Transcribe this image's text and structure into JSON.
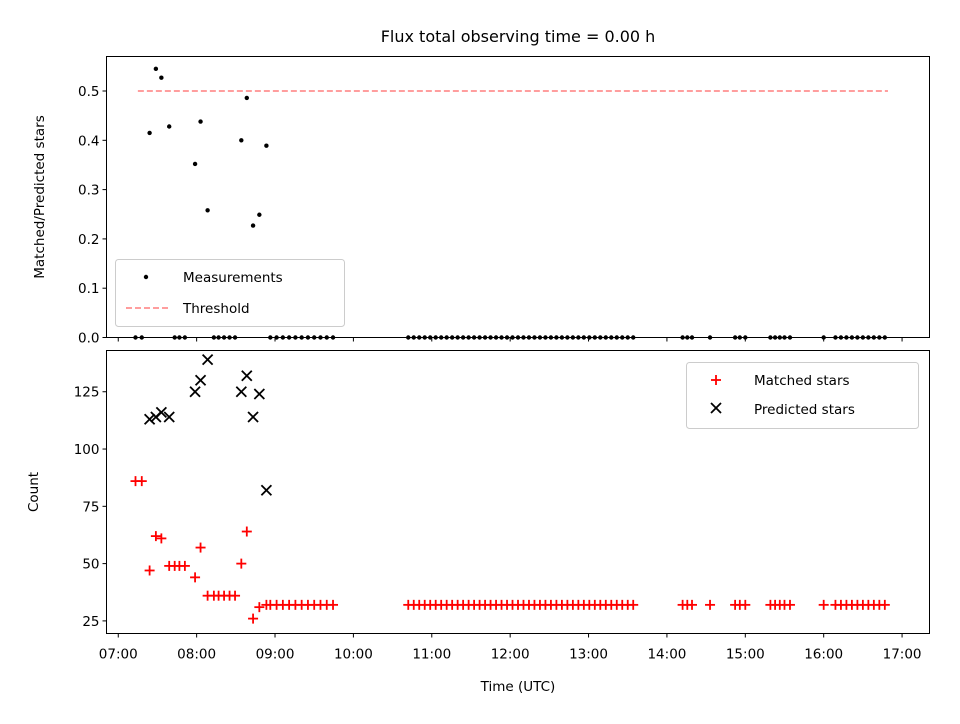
{
  "chart_data": {
    "title": "Flux total observing time = 0.00 h",
    "xlabel": "Time (UTC)",
    "x_unit": "hours UTC",
    "xlim": [
      6.85,
      17.35
    ],
    "x_tick_values": [
      7,
      8,
      9,
      10,
      11,
      12,
      13,
      14,
      15,
      16,
      17
    ],
    "x_tick_labels": [
      "07:00",
      "08:00",
      "09:00",
      "10:00",
      "11:00",
      "12:00",
      "13:00",
      "14:00",
      "15:00",
      "16:00",
      "17:00"
    ],
    "colors": {
      "measurement": "#000000",
      "threshold": "#ff7f7f",
      "matched": "#ff0000",
      "predicted": "#000000",
      "frame": "#000000"
    },
    "top": {
      "type": "scatter",
      "ylabel": "Matched/Predicted stars",
      "ylim": [
        0,
        0.57
      ],
      "y_tick_values": [
        0,
        0.1,
        0.2,
        0.3,
        0.4,
        0.5
      ],
      "y_tick_labels": [
        "0.0",
        "0.1",
        "0.2",
        "0.3",
        "0.4",
        "0.5"
      ],
      "threshold": {
        "value": 0.5,
        "x_range": [
          7.25,
          16.82
        ]
      },
      "measurements": [
        [
          7.22,
          0
        ],
        [
          7.3,
          0
        ],
        [
          7.4,
          0.415
        ],
        [
          7.48,
          0.545
        ],
        [
          7.55,
          0.527
        ],
        [
          7.65,
          0.428
        ],
        [
          7.72,
          0
        ],
        [
          7.78,
          0
        ],
        [
          7.85,
          0
        ],
        [
          7.98,
          0.352
        ],
        [
          8.05,
          0.438
        ],
        [
          8.14,
          0.258
        ],
        [
          8.22,
          0
        ],
        [
          8.28,
          0
        ],
        [
          8.35,
          0
        ],
        [
          8.42,
          0
        ],
        [
          8.49,
          0
        ],
        [
          8.57,
          0.4
        ],
        [
          8.64,
          0.486
        ],
        [
          8.72,
          0.227
        ],
        [
          8.8,
          0.249
        ],
        [
          8.89,
          0.389
        ],
        [
          8.94,
          0
        ],
        [
          9.02,
          0
        ],
        [
          9.1,
          0
        ],
        [
          9.18,
          0
        ],
        [
          9.26,
          0
        ],
        [
          9.34,
          0
        ],
        [
          9.42,
          0
        ],
        [
          9.5,
          0
        ],
        [
          9.58,
          0
        ],
        [
          9.66,
          0
        ],
        [
          9.74,
          0
        ],
        [
          10.7,
          0
        ],
        [
          10.77,
          0
        ],
        [
          10.84,
          0
        ],
        [
          10.91,
          0
        ],
        [
          10.98,
          0
        ],
        [
          11.05,
          0
        ],
        [
          11.12,
          0
        ],
        [
          11.19,
          0
        ],
        [
          11.26,
          0
        ],
        [
          11.33,
          0
        ],
        [
          11.4,
          0
        ],
        [
          11.47,
          0
        ],
        [
          11.54,
          0
        ],
        [
          11.61,
          0
        ],
        [
          11.68,
          0
        ],
        [
          11.75,
          0
        ],
        [
          11.82,
          0
        ],
        [
          11.89,
          0
        ],
        [
          11.96,
          0
        ],
        [
          12.03,
          0
        ],
        [
          12.1,
          0
        ],
        [
          12.17,
          0
        ],
        [
          12.24,
          0
        ],
        [
          12.31,
          0
        ],
        [
          12.38,
          0
        ],
        [
          12.45,
          0
        ],
        [
          12.52,
          0
        ],
        [
          12.59,
          0
        ],
        [
          12.66,
          0
        ],
        [
          12.73,
          0
        ],
        [
          12.8,
          0
        ],
        [
          12.87,
          0
        ],
        [
          12.94,
          0
        ],
        [
          13.01,
          0
        ],
        [
          13.08,
          0
        ],
        [
          13.15,
          0
        ],
        [
          13.22,
          0
        ],
        [
          13.29,
          0
        ],
        [
          13.36,
          0
        ],
        [
          13.43,
          0
        ],
        [
          13.5,
          0
        ],
        [
          13.57,
          0
        ],
        [
          14.2,
          0
        ],
        [
          14.26,
          0
        ],
        [
          14.32,
          0
        ],
        [
          14.55,
          0
        ],
        [
          14.87,
          0
        ],
        [
          14.93,
          0
        ],
        [
          15.0,
          0
        ],
        [
          15.32,
          0
        ],
        [
          15.38,
          0
        ],
        [
          15.44,
          0
        ],
        [
          15.5,
          0
        ],
        [
          15.57,
          0
        ],
        [
          16.0,
          0
        ],
        [
          16.15,
          0
        ],
        [
          16.22,
          0
        ],
        [
          16.29,
          0
        ],
        [
          16.36,
          0
        ],
        [
          16.43,
          0
        ],
        [
          16.5,
          0
        ],
        [
          16.57,
          0
        ],
        [
          16.64,
          0
        ],
        [
          16.71,
          0
        ],
        [
          16.78,
          0
        ]
      ],
      "legend": {
        "position": "lower-left",
        "entries": [
          "Measurements",
          "Threshold"
        ]
      }
    },
    "bottom": {
      "type": "scatter",
      "ylabel": "Count",
      "ylim": [
        19.5,
        143
      ],
      "y_tick_values": [
        25,
        50,
        75,
        100,
        125
      ],
      "y_tick_labels": [
        "25",
        "50",
        "75",
        "100",
        "125"
      ],
      "matched": [
        [
          7.22,
          86
        ],
        [
          7.3,
          86
        ],
        [
          7.4,
          47
        ],
        [
          7.48,
          62
        ],
        [
          7.55,
          61
        ],
        [
          7.65,
          49
        ],
        [
          7.72,
          49
        ],
        [
          7.78,
          49
        ],
        [
          7.85,
          49
        ],
        [
          7.98,
          44
        ],
        [
          8.05,
          57
        ],
        [
          8.14,
          36
        ],
        [
          8.22,
          36
        ],
        [
          8.28,
          36
        ],
        [
          8.35,
          36
        ],
        [
          8.42,
          36
        ],
        [
          8.49,
          36
        ],
        [
          8.57,
          50
        ],
        [
          8.64,
          64
        ],
        [
          8.72,
          26
        ],
        [
          8.8,
          31
        ],
        [
          8.89,
          32
        ],
        [
          8.94,
          32
        ],
        [
          9.02,
          32
        ],
        [
          9.1,
          32
        ],
        [
          9.18,
          32
        ],
        [
          9.26,
          32
        ],
        [
          9.34,
          32
        ],
        [
          9.42,
          32
        ],
        [
          9.5,
          32
        ],
        [
          9.58,
          32
        ],
        [
          9.66,
          32
        ],
        [
          9.74,
          32
        ],
        [
          10.7,
          32
        ],
        [
          10.77,
          32
        ],
        [
          10.84,
          32
        ],
        [
          10.91,
          32
        ],
        [
          10.98,
          32
        ],
        [
          11.05,
          32
        ],
        [
          11.12,
          32
        ],
        [
          11.19,
          32
        ],
        [
          11.26,
          32
        ],
        [
          11.33,
          32
        ],
        [
          11.4,
          32
        ],
        [
          11.47,
          32
        ],
        [
          11.54,
          32
        ],
        [
          11.61,
          32
        ],
        [
          11.68,
          32
        ],
        [
          11.75,
          32
        ],
        [
          11.82,
          32
        ],
        [
          11.89,
          32
        ],
        [
          11.96,
          32
        ],
        [
          12.03,
          32
        ],
        [
          12.1,
          32
        ],
        [
          12.17,
          32
        ],
        [
          12.24,
          32
        ],
        [
          12.31,
          32
        ],
        [
          12.38,
          32
        ],
        [
          12.45,
          32
        ],
        [
          12.52,
          32
        ],
        [
          12.59,
          32
        ],
        [
          12.66,
          32
        ],
        [
          12.73,
          32
        ],
        [
          12.8,
          32
        ],
        [
          12.87,
          32
        ],
        [
          12.94,
          32
        ],
        [
          13.01,
          32
        ],
        [
          13.08,
          32
        ],
        [
          13.15,
          32
        ],
        [
          13.22,
          32
        ],
        [
          13.29,
          32
        ],
        [
          13.36,
          32
        ],
        [
          13.43,
          32
        ],
        [
          13.5,
          32
        ],
        [
          13.57,
          32
        ],
        [
          14.2,
          32
        ],
        [
          14.26,
          32
        ],
        [
          14.32,
          32
        ],
        [
          14.55,
          32
        ],
        [
          14.87,
          32
        ],
        [
          14.93,
          32
        ],
        [
          15.0,
          32
        ],
        [
          15.32,
          32
        ],
        [
          15.38,
          32
        ],
        [
          15.44,
          32
        ],
        [
          15.5,
          32
        ],
        [
          15.57,
          32
        ],
        [
          16.0,
          32
        ],
        [
          16.15,
          32
        ],
        [
          16.22,
          32
        ],
        [
          16.29,
          32
        ],
        [
          16.36,
          32
        ],
        [
          16.43,
          32
        ],
        [
          16.5,
          32
        ],
        [
          16.57,
          32
        ],
        [
          16.64,
          32
        ],
        [
          16.71,
          32
        ],
        [
          16.78,
          32
        ]
      ],
      "predicted": [
        [
          7.4,
          113
        ],
        [
          7.48,
          114
        ],
        [
          7.55,
          116
        ],
        [
          7.65,
          114
        ],
        [
          7.98,
          125
        ],
        [
          8.05,
          130
        ],
        [
          8.14,
          139
        ],
        [
          8.57,
          125
        ],
        [
          8.64,
          132
        ],
        [
          8.72,
          114
        ],
        [
          8.8,
          124
        ],
        [
          8.89,
          82
        ]
      ],
      "legend": {
        "position": "upper-right",
        "entries": [
          "Matched stars",
          "Predicted stars"
        ]
      }
    }
  }
}
